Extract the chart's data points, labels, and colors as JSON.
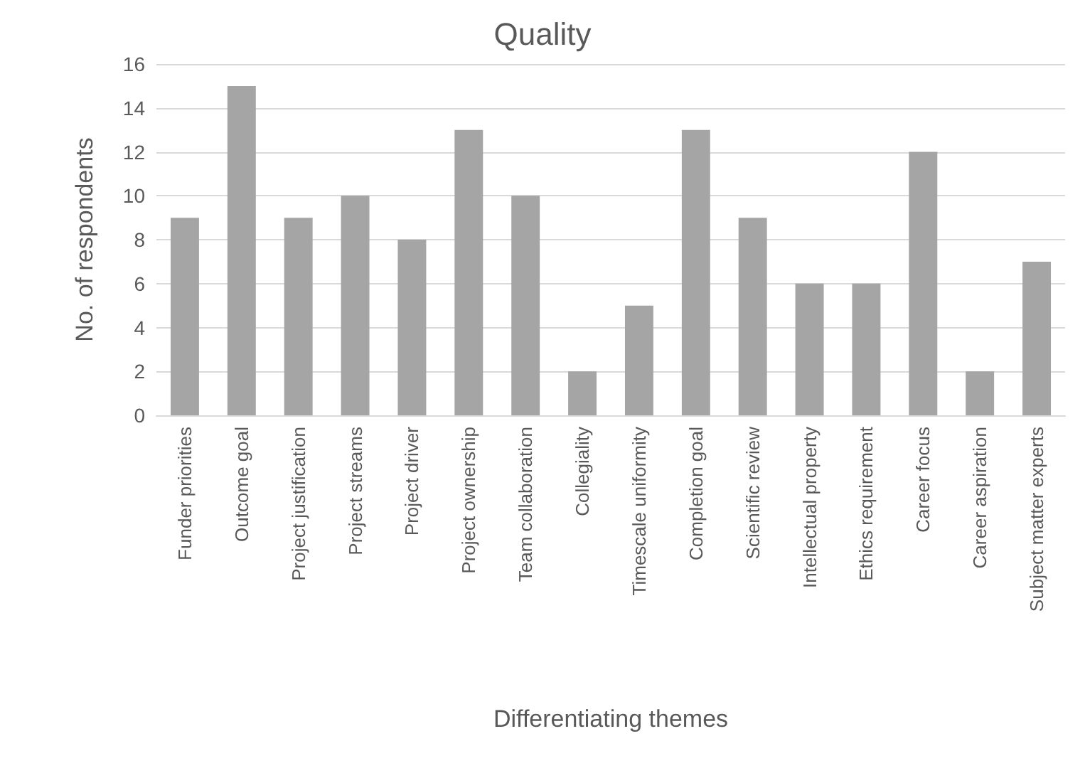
{
  "chart_data": {
    "type": "bar",
    "title": "Quality",
    "xlabel": "Differentiating themes",
    "ylabel": "No. of respondents",
    "categories": [
      "Funder priorities",
      "Outcome goal",
      "Project justification",
      "Project streams",
      "Project driver",
      "Project ownership",
      "Team collaboration",
      "Collegiality",
      "Timescale uniformity",
      "Completion goal",
      "Scientific review",
      "Intellectual property",
      "Ethics requirement",
      "Career focus",
      "Career aspiration",
      "Subject matter experts"
    ],
    "values": [
      9,
      15,
      9,
      10,
      8,
      13,
      10,
      2,
      5,
      13,
      9,
      6,
      6,
      12,
      2,
      7
    ],
    "color": "#a5a5a5",
    "ylim": [
      0,
      16
    ],
    "yticks": [
      0,
      2,
      4,
      6,
      8,
      10,
      12,
      14,
      16
    ],
    "grid": "y"
  }
}
